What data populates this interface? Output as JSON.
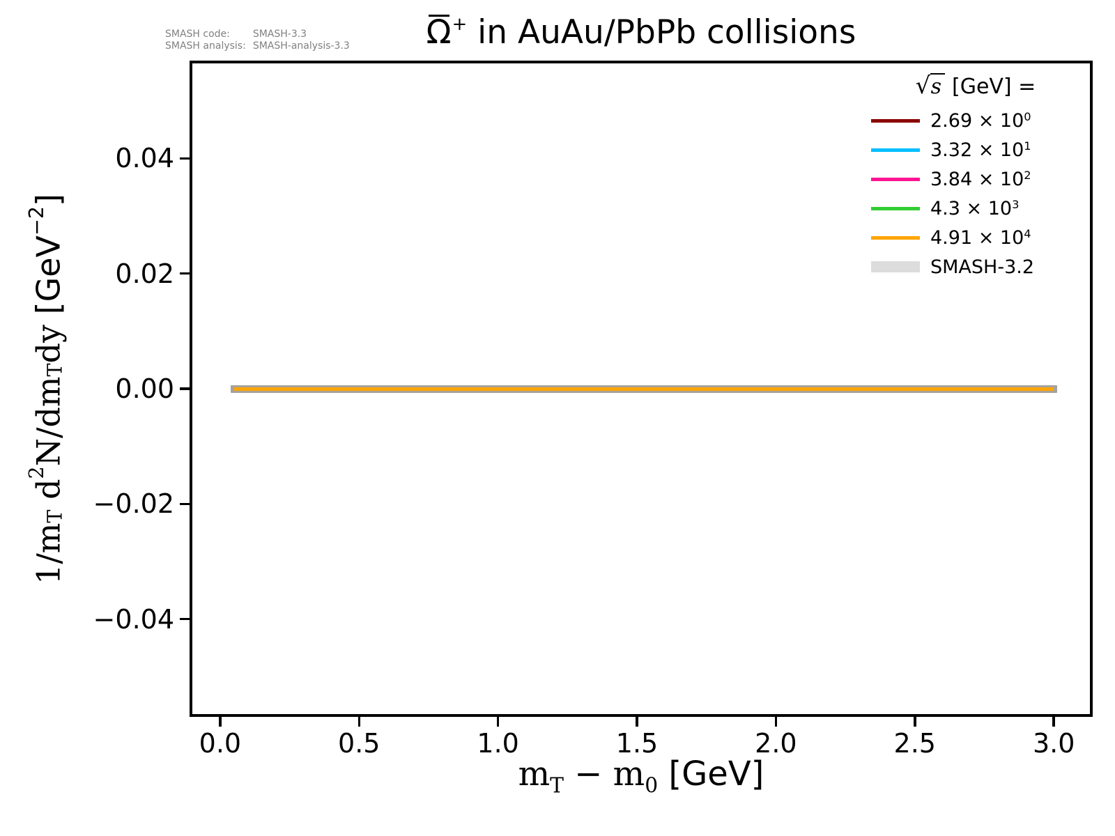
{
  "meta": {
    "code_label": "SMASH code:",
    "code_value": "SMASH-3.3",
    "analysis_label": "SMASH analysis:",
    "analysis_value": "SMASH-analysis-3.3"
  },
  "title": {
    "particle": "Ω",
    "charge": "+",
    "rest": " in AuAu/PbPb collisions"
  },
  "axes": {
    "xlabel_parts": {
      "m1": "m",
      "sub1": "T",
      "minus": " − ",
      "m2": "m",
      "sub2": "0",
      "unit": " [GeV]"
    },
    "ylabel_parts": {
      "p1": "1/m",
      "sub1": "T",
      "p2": " d",
      "sup1": "2",
      "p3": "N/dm",
      "sub2": "T",
      "p4": "dy ",
      "p5": "[GeV",
      "sup2": "−2",
      "p6": "]"
    }
  },
  "legend": {
    "title_sqrt": "√",
    "title_arg": "s",
    "title_rest": " [GeV] =",
    "times_glyph": "×",
    "entries": [
      {
        "mantissa": "2.69",
        "base": "10",
        "exponent": "0",
        "color": "#8b0000"
      },
      {
        "mantissa": "3.32",
        "base": "10",
        "exponent": "1",
        "color": "#00bfff"
      },
      {
        "mantissa": "3.84",
        "base": "10",
        "exponent": "2",
        "color": "#ff1493"
      },
      {
        "mantissa": "4.3",
        "base": "10",
        "exponent": "3",
        "color": "#32cd32"
      },
      {
        "mantissa": "4.91",
        "base": "10",
        "exponent": "4",
        "color": "#ffa500"
      },
      {
        "text": "SMASH-3.2",
        "color": "#dcdcdc",
        "thick": true
      }
    ]
  },
  "chart_data": {
    "type": "line",
    "title": "Ω̄⁺ in AuAu/PbPb collisions",
    "xlabel": "m_T − m_0 [GeV]",
    "ylabel": "1/m_T d²N/dm_T dy [GeV⁻²]",
    "xlim": [
      -0.1,
      3.13
    ],
    "ylim": [
      -0.0565,
      0.0565
    ],
    "xticks": [
      0,
      0.5,
      1.0,
      1.5,
      2.0,
      2.5,
      3.0
    ],
    "xtick_labels": [
      "0.0",
      "0.5",
      "1.0",
      "1.5",
      "2.0",
      "2.5",
      "3.0"
    ],
    "yticks": [
      0.04,
      0.02,
      0,
      -0.02,
      -0.04
    ],
    "ytick_labels": [
      "0.04",
      "0.02",
      "0.00",
      "−0.02",
      "−0.04"
    ],
    "grid": false,
    "legend_position": "upper right",
    "legend_title": "√s [GeV] =",
    "series": [
      {
        "name": "2.69 × 10⁰",
        "sqrt_s_GeV": 2.69,
        "color": "#8b0000",
        "x_range": [
          0.05,
          3.0
        ],
        "y_constant": 0
      },
      {
        "name": "3.32 × 10¹",
        "sqrt_s_GeV": 33.2,
        "color": "#00bfff",
        "x_range": [
          0.05,
          3.0
        ],
        "y_constant": 0
      },
      {
        "name": "3.84 × 10²",
        "sqrt_s_GeV": 384,
        "color": "#ff1493",
        "x_range": [
          0.05,
          3.0
        ],
        "y_constant": 0
      },
      {
        "name": "4.3 × 10³",
        "sqrt_s_GeV": 4300,
        "color": "#32cd32",
        "x_range": [
          0.05,
          3.0
        ],
        "y_constant": 0
      },
      {
        "name": "4.91 × 10⁴",
        "sqrt_s_GeV": 49100,
        "color": "#ffa500",
        "x_range": [
          0.05,
          3.0
        ],
        "y_constant": 0
      },
      {
        "name": "SMASH-3.2",
        "color": "#dcdcdc",
        "plot_band_color": "#a7a19b",
        "style": "thick-band",
        "x_range": [
          0.05,
          3.0
        ],
        "y_constant": 0
      }
    ],
    "visible_overlay": {
      "band_color": "#a7a19b",
      "line_color": "#ffa500",
      "y": 0
    }
  }
}
